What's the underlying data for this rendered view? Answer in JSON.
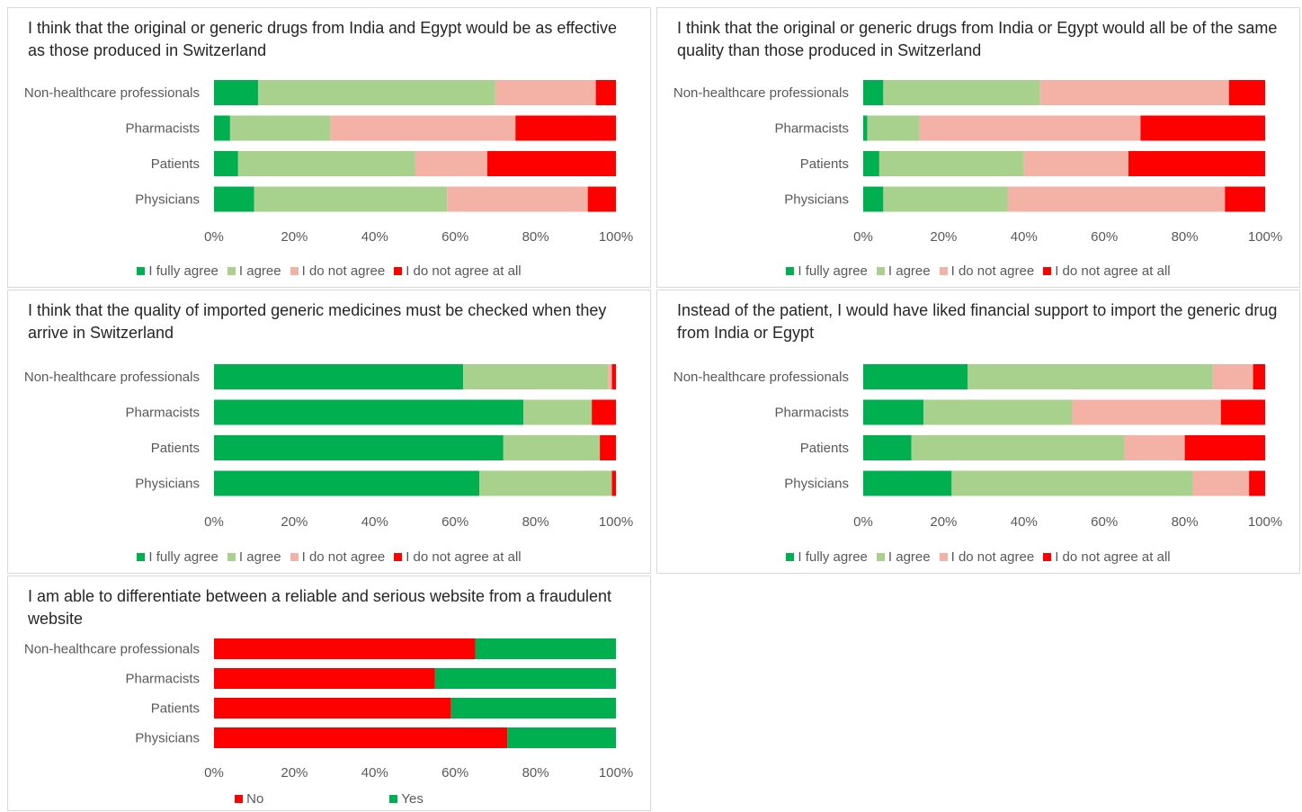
{
  "colors": {
    "fully_agree": "#00b050",
    "agree": "#a9d18e",
    "not_agree": "#f4b183",
    "not_agree_at_all": "#ff0000",
    "no": "#ff0000",
    "yes": "#00b050"
  },
  "chart_data": [
    {
      "type": "bar",
      "orientation": "horizontal",
      "stacked": "percent",
      "title": "I think that the original or generic drugs from India and Egypt would be as effective as those produced in Switzerland",
      "categories": [
        "Non-healthcare professionals",
        "Pharmacists",
        "Patients",
        "Physicians"
      ],
      "xticks": [
        "0%",
        "20%",
        "40%",
        "60%",
        "80%",
        "100%"
      ],
      "xlim": [
        0,
        100
      ],
      "legend_position": "bottom",
      "series": [
        {
          "name": "I fully agree",
          "color": "#00b050",
          "values": [
            11,
            4,
            6,
            10
          ]
        },
        {
          "name": "I agree",
          "color": "#a9d18e",
          "values": [
            59,
            25,
            44,
            48
          ]
        },
        {
          "name": "I do not agree",
          "color": "#f4b1a6",
          "values": [
            25,
            46,
            18,
            35
          ]
        },
        {
          "name": "I do not agree at all",
          "color": "#ff0000",
          "values": [
            5,
            25,
            32,
            7
          ]
        }
      ]
    },
    {
      "type": "bar",
      "orientation": "horizontal",
      "stacked": "percent",
      "title": "I think that the original or generic drugs from India or Egypt would all be of the same quality than those produced in Switzerland",
      "categories": [
        "Non-healthcare professionals",
        "Pharmacists",
        "Patients",
        "Physicians"
      ],
      "xticks": [
        "0%",
        "20%",
        "40%",
        "60%",
        "80%",
        "100%"
      ],
      "xlim": [
        0,
        100
      ],
      "legend_position": "bottom",
      "series": [
        {
          "name": "I fully agree",
          "color": "#00b050",
          "values": [
            5,
            1,
            4,
            5
          ]
        },
        {
          "name": "I agree",
          "color": "#a9d18e",
          "values": [
            39,
            13,
            36,
            31
          ]
        },
        {
          "name": "I do not agree",
          "color": "#f4b1a6",
          "values": [
            47,
            55,
            26,
            54
          ]
        },
        {
          "name": "I do not agree at all",
          "color": "#ff0000",
          "values": [
            9,
            31,
            34,
            10
          ]
        }
      ]
    },
    {
      "type": "bar",
      "orientation": "horizontal",
      "stacked": "percent",
      "title": "I think that the quality of imported generic medicines must be checked when they arrive in Switzerland",
      "categories": [
        "Non-healthcare professionals",
        "Pharmacists",
        "Patients",
        "Physicians"
      ],
      "xticks": [
        "0%",
        "20%",
        "40%",
        "60%",
        "80%",
        "100%"
      ],
      "xlim": [
        0,
        100
      ],
      "legend_position": "bottom",
      "series": [
        {
          "name": "I fully agree",
          "color": "#00b050",
          "values": [
            62,
            77,
            72,
            66
          ]
        },
        {
          "name": "I agree",
          "color": "#a9d18e",
          "values": [
            36,
            17,
            24,
            33
          ]
        },
        {
          "name": "I do not agree",
          "color": "#f4b1a6",
          "values": [
            1,
            0,
            0,
            0
          ]
        },
        {
          "name": "I do not agree at all",
          "color": "#ff0000",
          "values": [
            1,
            6,
            4,
            1
          ]
        }
      ]
    },
    {
      "type": "bar",
      "orientation": "horizontal",
      "stacked": "percent",
      "title": "Instead of the patient, I would have liked financial support to import the generic drug from India or Egypt",
      "categories": [
        "Non-healthcare professionals",
        "Pharmacists",
        "Patients",
        "Physicians"
      ],
      "xticks": [
        "0%",
        "20%",
        "40%",
        "60%",
        "80%",
        "100%"
      ],
      "xlim": [
        0,
        100
      ],
      "legend_position": "bottom",
      "series": [
        {
          "name": "I fully agree",
          "color": "#00b050",
          "values": [
            26,
            15,
            12,
            22
          ]
        },
        {
          "name": "I agree",
          "color": "#a9d18e",
          "values": [
            61,
            37,
            53,
            60
          ]
        },
        {
          "name": "I do not agree",
          "color": "#f4b1a6",
          "values": [
            10,
            37,
            15,
            14
          ]
        },
        {
          "name": "I do not agree at all",
          "color": "#ff0000",
          "values": [
            3,
            11,
            20,
            4
          ]
        }
      ]
    },
    {
      "type": "bar",
      "orientation": "horizontal",
      "stacked": "percent",
      "title": "I am able to differentiate between a reliable and serious website from a fraudulent website",
      "categories": [
        "Non-healthcare professionals",
        "Pharmacists",
        "Patients",
        "Physicians"
      ],
      "xticks": [
        "0%",
        "20%",
        "40%",
        "60%",
        "80%",
        "100%"
      ],
      "xlim": [
        0,
        100
      ],
      "legend_position": "bottom",
      "series": [
        {
          "name": "No",
          "color": "#ff0000",
          "values": [
            65,
            55,
            59,
            73
          ]
        },
        {
          "name": "Yes",
          "color": "#00b050",
          "values": [
            35,
            45,
            41,
            27
          ]
        }
      ]
    }
  ]
}
